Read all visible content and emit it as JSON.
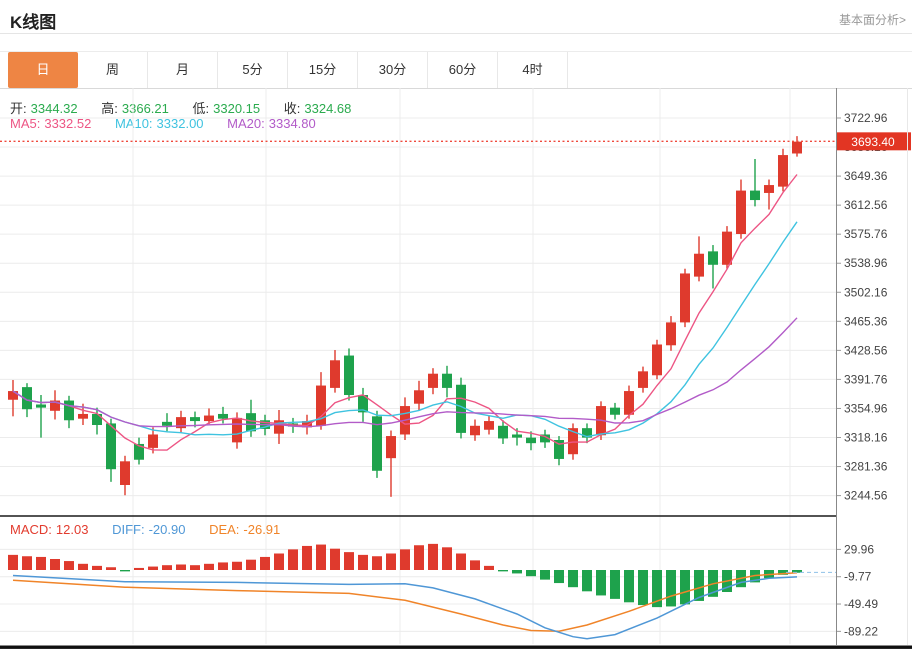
{
  "header": {
    "title": "K线图",
    "link": "基本面分析>"
  },
  "tabs": [
    {
      "label": "日",
      "active": true
    },
    {
      "label": "周",
      "active": false
    },
    {
      "label": "月",
      "active": false
    },
    {
      "label": "5分",
      "active": false
    },
    {
      "label": "15分",
      "active": false
    },
    {
      "label": "30分",
      "active": false
    },
    {
      "label": "60分",
      "active": false
    },
    {
      "label": "4时",
      "active": false
    }
  ],
  "legend_ohlc": {
    "open_label": "开:",
    "open": "3344.32",
    "high_label": "高:",
    "high": "3366.21",
    "low_label": "低:",
    "low": "3320.15",
    "close_label": "收:",
    "close": "3324.68"
  },
  "legend_ma": [
    {
      "label": "MA5:",
      "value": "3332.52"
    },
    {
      "label": "MA10:",
      "value": "3332.00"
    },
    {
      "label": "MA20:",
      "value": "3334.80"
    }
  ],
  "legend_macd": [
    {
      "label": "MACD:",
      "value": "12.03"
    },
    {
      "label": "DIFF:",
      "value": "-20.90"
    },
    {
      "label": "DEA:",
      "value": "-26.91"
    }
  ],
  "price_tag": "3693.40",
  "colors": {
    "accent_orange": "#ee8544",
    "up": "#df3a2d",
    "down": "#1ea24c",
    "ohlc_value": "#2bab4e",
    "ma5": "#ed5584",
    "ma10": "#3fc3e0",
    "ma20": "#b25bc8",
    "macd_label": "#e23b2e",
    "diff": "#4f97d6",
    "dea": "#f08429",
    "dotted_line": "#ef4a3c",
    "price_tag_bg": "#e23523",
    "grid": "#ececec",
    "axis_text": "#444"
  },
  "chart_data": {
    "type": "candlestick+macd",
    "title": "K线图 daily candlestick with MA5/MA10/MA20 and MACD",
    "current_price_line": 3693.4,
    "price_axis_ticks": [
      3722.96,
      3686.16,
      3649.36,
      3612.56,
      3575.76,
      3538.96,
      3502.16,
      3465.36,
      3428.56,
      3391.76,
      3354.96,
      3318.16,
      3281.36,
      3244.56
    ],
    "macd_axis_ticks": [
      29.96,
      -9.77,
      -49.49,
      -89.22
    ],
    "candle_columns": [
      "open",
      "high",
      "low",
      "close"
    ],
    "candles": [
      [
        3366,
        3391,
        3345,
        3377
      ],
      [
        3382,
        3387,
        3344,
        3354
      ],
      [
        3360,
        3372,
        3318,
        3356
      ],
      [
        3352,
        3378,
        3341,
        3365
      ],
      [
        3365,
        3371,
        3330,
        3340
      ],
      [
        3342,
        3361,
        3334,
        3348
      ],
      [
        3348,
        3356,
        3322,
        3334
      ],
      [
        3336,
        3342,
        3262,
        3278
      ],
      [
        3258,
        3295,
        3245,
        3288
      ],
      [
        3310,
        3318,
        3284,
        3290
      ],
      [
        3305,
        3331,
        3298,
        3322
      ],
      [
        3338,
        3349,
        3326,
        3333
      ],
      [
        3330,
        3352,
        3324,
        3344
      ],
      [
        3344,
        3351,
        3331,
        3339
      ],
      [
        3339,
        3355,
        3335,
        3346
      ],
      [
        3348,
        3357,
        3336,
        3342
      ],
      [
        3312,
        3350,
        3304,
        3343
      ],
      [
        3349,
        3366,
        3319,
        3326
      ],
      [
        3340,
        3347,
        3321,
        3329
      ],
      [
        3323,
        3353,
        3310,
        3340
      ],
      [
        3336,
        3343,
        3324,
        3332
      ],
      [
        3331,
        3347,
        3322,
        3339
      ],
      [
        3333,
        3401,
        3328,
        3384
      ],
      [
        3381,
        3429,
        3375,
        3416
      ],
      [
        3422,
        3431,
        3365,
        3372
      ],
      [
        3372,
        3381,
        3338,
        3350
      ],
      [
        3345,
        3352,
        3267,
        3276
      ],
      [
        3292,
        3327,
        3243,
        3320
      ],
      [
        3322,
        3369,
        3315,
        3358
      ],
      [
        3361,
        3390,
        3353,
        3378
      ],
      [
        3381,
        3406,
        3373,
        3399
      ],
      [
        3399,
        3409,
        3369,
        3381
      ],
      [
        3385,
        3394,
        3317,
        3324
      ],
      [
        3321,
        3341,
        3314,
        3333
      ],
      [
        3328,
        3346,
        3322,
        3339
      ],
      [
        3333,
        3340,
        3310,
        3317
      ],
      [
        3322,
        3330,
        3308,
        3318
      ],
      [
        3318,
        3326,
        3302,
        3311
      ],
      [
        3322,
        3328,
        3305,
        3312
      ],
      [
        3315,
        3320,
        3283,
        3291
      ],
      [
        3297,
        3336,
        3290,
        3330
      ],
      [
        3330,
        3336,
        3311,
        3318
      ],
      [
        3321,
        3364,
        3315,
        3358
      ],
      [
        3356,
        3362,
        3341,
        3347
      ],
      [
        3347,
        3384,
        3342,
        3377
      ],
      [
        3381,
        3408,
        3375,
        3402
      ],
      [
        3397,
        3442,
        3392,
        3436
      ],
      [
        3435,
        3472,
        3428,
        3464
      ],
      [
        3464,
        3532,
        3458,
        3526
      ],
      [
        3522,
        3573,
        3516,
        3551
      ],
      [
        3554,
        3562,
        3507,
        3537
      ],
      [
        3537,
        3586,
        3532,
        3579
      ],
      [
        3576,
        3645,
        3570,
        3631
      ],
      [
        3631,
        3671,
        3611,
        3619
      ],
      [
        3628,
        3645,
        3607,
        3638
      ],
      [
        3636,
        3684,
        3630,
        3676
      ],
      [
        3678,
        3700,
        3674,
        3693
      ]
    ],
    "ma_windows": [
      5,
      10,
      20
    ],
    "macd_histogram": [
      22,
      20,
      19,
      16,
      13,
      9,
      6,
      4,
      -2,
      3,
      5,
      7,
      8,
      7,
      9,
      11,
      12,
      15,
      19,
      24,
      30,
      35,
      37,
      31,
      26,
      22,
      20,
      24,
      30,
      36,
      38,
      33,
      24,
      14,
      6,
      -2,
      -5,
      -9,
      -14,
      -19,
      -25,
      -31,
      -37,
      -42,
      -47,
      -51,
      -54,
      -53,
      -50,
      -45,
      -39,
      -32,
      -25,
      -18,
      -12,
      -7,
      -4
    ],
    "diff_points": [
      [
        0,
        -8
      ],
      [
        8,
        -17
      ],
      [
        16,
        -18
      ],
      [
        24,
        -21
      ],
      [
        28,
        -20
      ],
      [
        30,
        -26
      ],
      [
        33,
        -42
      ],
      [
        36,
        -64
      ],
      [
        38,
        -84
      ],
      [
        40,
        -97
      ],
      [
        41,
        -100
      ],
      [
        43,
        -94
      ],
      [
        46,
        -70
      ],
      [
        49,
        -40
      ],
      [
        52,
        -18
      ],
      [
        54,
        -12
      ],
      [
        56,
        -10
      ]
    ],
    "dea_points": [
      [
        0,
        -15
      ],
      [
        8,
        -25
      ],
      [
        16,
        -30
      ],
      [
        24,
        -34
      ],
      [
        28,
        -44
      ],
      [
        32,
        -64
      ],
      [
        35,
        -80
      ],
      [
        37,
        -88
      ],
      [
        39,
        -89
      ],
      [
        41,
        -80
      ],
      [
        44,
        -60
      ],
      [
        47,
        -38
      ],
      [
        50,
        -20
      ],
      [
        53,
        -8
      ],
      [
        56,
        -4
      ]
    ],
    "diff_current_dash_level": -3.5,
    "price_axis_range": [
      3244.56,
      3722.96
    ],
    "macd_axis_range": [
      -89.22,
      29.96
    ],
    "grid": true,
    "legend_position": "top-left"
  }
}
